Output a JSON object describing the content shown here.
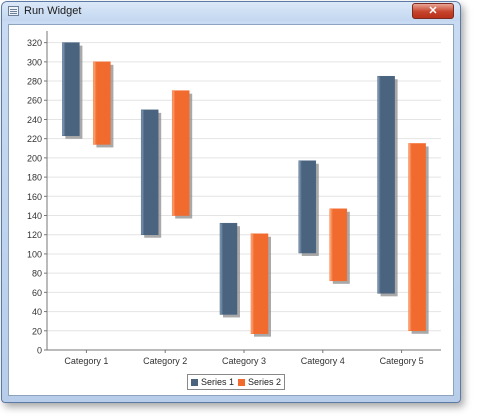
{
  "window": {
    "title": "Run Widget",
    "close_glyph": "✕",
    "app_icon": "window-list-icon"
  },
  "colors": {
    "series1": "#4a6480",
    "series1_light": "#8ca4bf",
    "series2": "#f26b2e",
    "series2_light": "#ffb48a",
    "shadow": "#8c8c8c"
  },
  "chart_data": {
    "type": "bar",
    "subtype": "floating-range",
    "categories": [
      "Category 1",
      "Category 2",
      "Category 3",
      "Category 4",
      "Category 5"
    ],
    "series": [
      {
        "name": "Series 1",
        "ranges": [
          [
            223,
            320
          ],
          [
            120,
            250
          ],
          [
            37,
            132
          ],
          [
            101,
            197
          ],
          [
            59,
            285
          ]
        ]
      },
      {
        "name": "Series 2",
        "ranges": [
          [
            214,
            300
          ],
          [
            140,
            270
          ],
          [
            17,
            121
          ],
          [
            72,
            147
          ],
          [
            20,
            215
          ]
        ]
      }
    ],
    "yticks": [
      0,
      20,
      40,
      60,
      80,
      100,
      120,
      140,
      160,
      180,
      200,
      220,
      240,
      260,
      280,
      300,
      320
    ],
    "ylim": [
      0,
      330
    ],
    "grid": true,
    "legend_position": "bottom"
  }
}
